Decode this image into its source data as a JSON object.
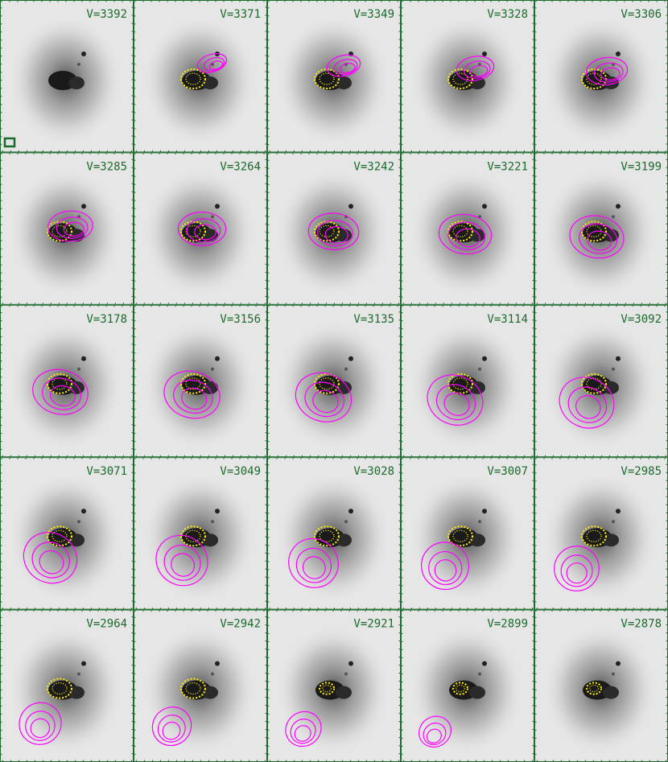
{
  "panels": [
    {
      "label": "V=3392"
    },
    {
      "label": "V=3371"
    },
    {
      "label": "V=3349"
    },
    {
      "label": "V=3328"
    },
    {
      "label": "V=3306"
    },
    {
      "label": "V=3285"
    },
    {
      "label": "V=3264"
    },
    {
      "label": "V=3242"
    },
    {
      "label": "V=3221"
    },
    {
      "label": "V=3199"
    },
    {
      "label": "V=3178"
    },
    {
      "label": "V=3156"
    },
    {
      "label": "V=3135"
    },
    {
      "label": "V=3114"
    },
    {
      "label": "V=3092"
    },
    {
      "label": "V=3071"
    },
    {
      "label": "V=3049"
    },
    {
      "label": "V=3028"
    },
    {
      "label": "V=3007"
    },
    {
      "label": "V=2985"
    },
    {
      "label": "V=2964"
    },
    {
      "label": "V=2942"
    },
    {
      "label": "V=2921"
    },
    {
      "label": "V=2899"
    },
    {
      "label": "V=2878"
    }
  ]
}
